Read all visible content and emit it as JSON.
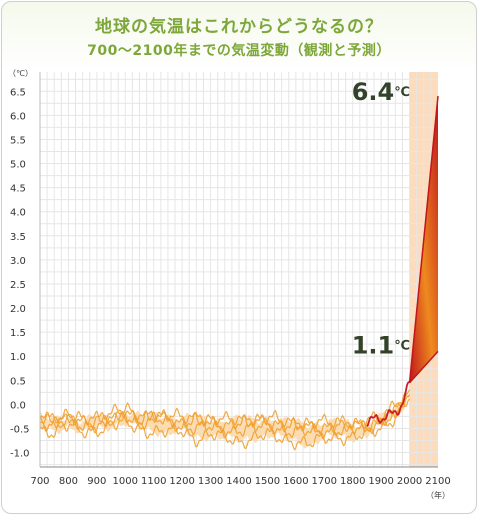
{
  "header": {
    "title": "地球の気温はこれからどうなるの？",
    "subtitle": "700〜2100年までの気温変動（観測と予測）"
  },
  "chart_data": {
    "type": "area",
    "title": "地球の気温はこれからどうなるの？",
    "subtitle": "700〜2100年までの気温変動（観測と予測）",
    "y_unit": "（℃）",
    "x_unit": "（年）",
    "xlim": [
      700,
      2100
    ],
    "ylim": [
      -1.3,
      6.9
    ],
    "x_ticks": [
      700,
      800,
      900,
      1000,
      1100,
      1200,
      1300,
      1400,
      1500,
      1600,
      1700,
      1800,
      1900,
      2000,
      2100
    ],
    "y_ticks": [
      6.5,
      6.0,
      5.5,
      5.0,
      4.5,
      4.0,
      3.5,
      3.0,
      2.5,
      2.0,
      1.5,
      1.0,
      0.5,
      0.0,
      -0.5,
      -1.0
    ],
    "y_tick_labels": [
      "6.5",
      "6.0",
      "5.5",
      "5.0",
      "4.5",
      "4.0",
      "3.5",
      "3.0",
      "2.5",
      "2.0",
      "1.5",
      "1.0",
      "0.5",
      "0.0",
      "-0.5",
      "-1.0"
    ],
    "grid": true,
    "projection_period": [
      2000,
      2100
    ],
    "colors": {
      "title": "#7da73a",
      "reconstruction": "#f0a030",
      "reconstruction_band": "#fbd7a6",
      "observed": "#cc1f1f",
      "projection_band": "#fcdcbc",
      "projection_dark": "#c0161c",
      "projection_light": "#ee8a1f",
      "grid": "#e6e6e6",
      "callout_text": "#33422a"
    },
    "series": [
      {
        "x": [
          700,
          750,
          800,
          850,
          900,
          950,
          1000,
          1050,
          1100,
          1150,
          1200,
          1250,
          1300,
          1350,
          1400,
          1450,
          1500,
          1550,
          1600,
          1650,
          1700,
          1750,
          1800,
          1850,
          1900,
          1950,
          2000
        ],
        "values": [
          -0.25,
          -0.3,
          -0.28,
          -0.35,
          -0.25,
          -0.3,
          -0.15,
          -0.25,
          -0.2,
          -0.25,
          -0.3,
          -0.25,
          -0.3,
          -0.35,
          -0.3,
          -0.3,
          -0.3,
          -0.35,
          -0.35,
          -0.4,
          -0.4,
          -0.35,
          -0.4,
          -0.4,
          -0.25,
          -0.1,
          0.2
        ]
      },
      {
        "x": [
          700,
          750,
          800,
          850,
          900,
          950,
          1000,
          1050,
          1100,
          1150,
          1200,
          1250,
          1300,
          1350,
          1400,
          1450,
          1500,
          1550,
          1600,
          1650,
          1700,
          1750,
          1800,
          1850,
          1900,
          1950,
          2000
        ],
        "values": [
          -0.5,
          -0.55,
          -0.45,
          -0.6,
          -0.5,
          -0.45,
          -0.4,
          -0.5,
          -0.55,
          -0.6,
          -0.55,
          -0.7,
          -0.65,
          -0.7,
          -0.75,
          -0.7,
          -0.65,
          -0.7,
          -0.75,
          -0.85,
          -0.7,
          -0.65,
          -0.7,
          -0.65,
          -0.45,
          -0.25,
          0.1
        ]
      },
      {
        "x": [
          700,
          750,
          800,
          850,
          900,
          950,
          1000,
          1050,
          1100,
          1150,
          1200,
          1250,
          1300,
          1350,
          1400,
          1450,
          1500,
          1550,
          1600,
          1650,
          1700,
          1750,
          1800,
          1850,
          1900,
          1950,
          2000
        ],
        "values": [
          -0.35,
          -0.4,
          -0.35,
          -0.45,
          -0.4,
          -0.35,
          -0.25,
          -0.35,
          -0.3,
          -0.4,
          -0.45,
          -0.45,
          -0.5,
          -0.55,
          -0.5,
          -0.5,
          -0.45,
          -0.5,
          -0.55,
          -0.6,
          -0.55,
          -0.5,
          -0.55,
          -0.5,
          -0.35,
          -0.15,
          0.15
        ]
      },
      {
        "x": [
          700,
          750,
          800,
          850,
          900,
          950,
          1000,
          1050,
          1100,
          1150,
          1200,
          1250,
          1300,
          1350,
          1400,
          1450,
          1500,
          1550,
          1600,
          1650,
          1700,
          1750,
          1800,
          1850,
          1900,
          1950,
          2000
        ],
        "values": [
          -0.2,
          -0.35,
          -0.25,
          -0.3,
          -0.35,
          -0.2,
          -0.1,
          -0.3,
          -0.25,
          -0.3,
          -0.35,
          -0.3,
          -0.45,
          -0.4,
          -0.35,
          -0.4,
          -0.35,
          -0.4,
          -0.45,
          -0.5,
          -0.45,
          -0.4,
          -0.45,
          -0.45,
          -0.3,
          -0.05,
          0.2
        ]
      },
      {
        "x": [
          1850,
          1875,
          1900,
          1925,
          1950,
          1975,
          2000
        ],
        "values": [
          -0.4,
          -0.35,
          -0.3,
          -0.2,
          -0.1,
          0.0,
          0.45
        ]
      }
    ],
    "projection": {
      "x": [
        2000,
        2100
      ],
      "lower": [
        0.45,
        1.1
      ],
      "upper": [
        0.45,
        6.4
      ]
    },
    "annotations": [
      {
        "value": "6.4",
        "unit": "℃",
        "x": 2100,
        "y": 6.4
      },
      {
        "value": "1.1",
        "unit": "℃",
        "x": 2100,
        "y": 1.1
      }
    ]
  }
}
